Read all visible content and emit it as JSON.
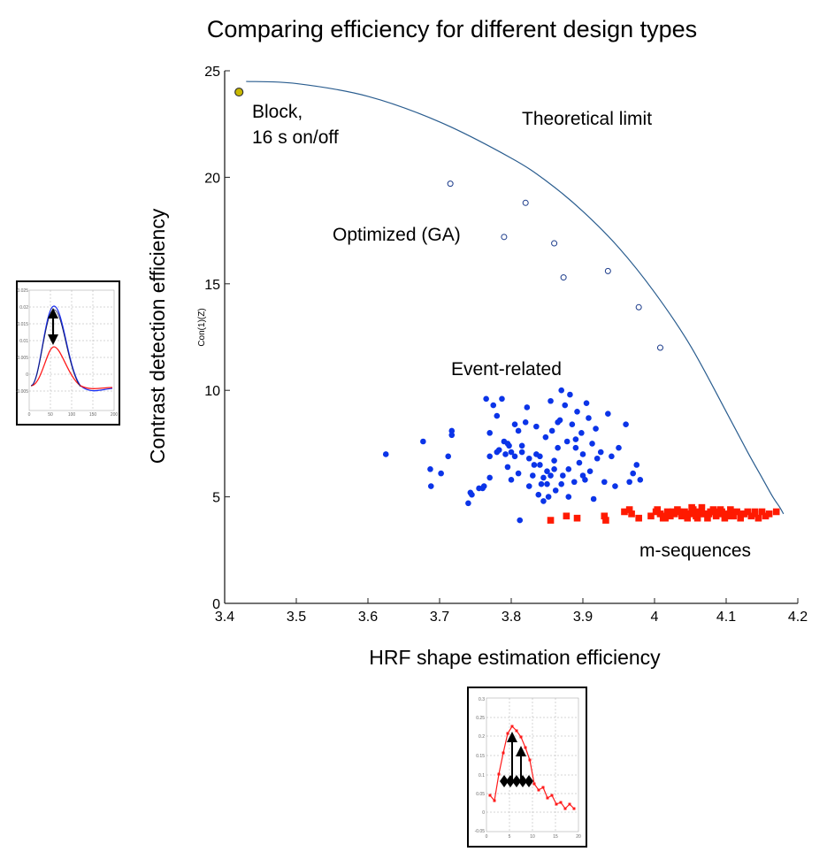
{
  "chart_data": {
    "type": "scatter",
    "title": "Comparing efficiency for different design types",
    "xlabel": "HRF shape estimation efficiency",
    "ylabel": "Contrast detection efficiency",
    "ylabel_small": "Con(1)(Z)",
    "xlim": [
      3.4,
      4.2
    ],
    "ylim": [
      0,
      25
    ],
    "x_ticks": [
      3.4,
      3.5,
      3.6,
      3.7,
      3.8,
      3.9,
      4,
      4.1,
      4.2
    ],
    "x_tick_labels": [
      "3.4",
      "3.5",
      "3.6",
      "3.7",
      "3.8",
      "3.9",
      "4",
      "4.1",
      "4.2"
    ],
    "y_ticks": [
      0,
      5,
      10,
      15,
      20,
      25
    ],
    "y_tick_labels": [
      "0",
      "5",
      "10",
      "15",
      "20",
      "25"
    ],
    "grid": false,
    "colors": {
      "limit": "#2a5d8f",
      "block_fill": "#c8b800",
      "ga": "#1a3a8a",
      "event": "#0b34e8",
      "mseq": "#ff1a00"
    },
    "annotations": {
      "block_line1": "Block,",
      "block_line2": "16 s on/off",
      "theoretical": "Theoretical limit",
      "optimized": "Optimized (GA)",
      "event_related": "Event-related",
      "m_sequences": "m-sequences"
    },
    "theoretical_limit": {
      "x": [
        3.43,
        3.5,
        3.6,
        3.7,
        3.8,
        3.85,
        3.9,
        3.95,
        4.0,
        4.05,
        4.1,
        4.13,
        4.15,
        4.165,
        4.175,
        4.18
      ],
      "y": [
        24.5,
        24.4,
        23.8,
        22.6,
        20.9,
        19.8,
        18.4,
        16.7,
        14.6,
        12.1,
        9.0,
        7.1,
        5.9,
        5.0,
        4.5,
        4.2
      ]
    },
    "series": [
      {
        "marker": "circle-filled",
        "x": [
          3.42
        ],
        "y": [
          24.0
        ]
      },
      {
        "marker": "circle-open",
        "x": [
          3.715,
          3.82,
          3.79,
          3.86,
          3.873,
          3.935,
          3.978,
          4.008
        ],
        "y": [
          19.7,
          18.8,
          17.2,
          16.9,
          15.3,
          15.6,
          13.9,
          12.0
        ]
      },
      {
        "marker": "dot",
        "x": [
          3.625,
          3.677,
          3.687,
          3.688,
          3.702,
          3.712,
          3.717,
          3.717,
          3.74,
          3.743,
          3.755,
          3.762,
          3.765,
          3.77,
          3.775,
          3.77,
          3.78,
          3.783,
          3.787,
          3.792,
          3.795,
          3.797,
          3.8,
          3.805,
          3.81,
          3.812,
          3.815,
          3.82,
          3.825,
          3.822,
          3.83,
          3.832,
          3.835,
          3.838,
          3.84,
          3.842,
          3.845,
          3.848,
          3.85,
          3.852,
          3.855,
          3.857,
          3.86,
          3.862,
          3.865,
          3.868,
          3.87,
          3.872,
          3.875,
          3.878,
          3.88,
          3.882,
          3.885,
          3.888,
          3.89,
          3.892,
          3.895,
          3.898,
          3.9,
          3.903,
          3.905,
          3.908,
          3.91,
          3.913,
          3.915,
          3.918,
          3.92,
          3.925,
          3.93,
          3.935,
          3.94,
          3.945,
          3.95,
          3.96,
          3.965,
          3.97,
          3.975,
          3.98,
          3.79,
          3.8,
          3.81,
          3.78,
          3.77,
          3.835,
          3.845,
          3.86,
          3.87,
          3.88,
          3.825,
          3.84,
          3.855,
          3.865,
          3.795,
          3.805,
          3.815,
          3.85,
          3.89,
          3.9,
          3.76,
          3.745
        ],
        "y": [
          7.0,
          7.6,
          6.3,
          5.5,
          6.1,
          6.9,
          8.1,
          7.9,
          4.7,
          5.2,
          5.4,
          5.5,
          9.6,
          8.0,
          9.3,
          6.9,
          8.8,
          7.2,
          9.6,
          7.0,
          6.4,
          7.4,
          5.8,
          8.4,
          6.1,
          3.9,
          7.1,
          8.5,
          5.5,
          9.2,
          6.0,
          6.5,
          8.3,
          5.1,
          6.9,
          5.6,
          4.8,
          7.8,
          6.2,
          5.0,
          9.5,
          8.1,
          6.7,
          5.3,
          7.3,
          8.6,
          10.0,
          6.0,
          9.3,
          7.6,
          6.3,
          9.8,
          8.4,
          5.7,
          7.7,
          9.0,
          6.6,
          8.0,
          7.0,
          5.8,
          9.4,
          8.7,
          6.2,
          7.5,
          4.9,
          8.2,
          6.8,
          7.1,
          5.7,
          8.9,
          6.9,
          5.5,
          7.3,
          8.4,
          5.7,
          6.1,
          6.5,
          5.8,
          7.6,
          7.1,
          8.1,
          7.1,
          5.9,
          7.0,
          5.9,
          6.3,
          5.6,
          5.0,
          6.8,
          6.5,
          6.0,
          8.5,
          7.5,
          6.9,
          7.4,
          5.6,
          7.3,
          6.0,
          5.4,
          5.1
        ]
      },
      {
        "marker": "square",
        "x": [
          3.855,
          3.877,
          3.892,
          3.93,
          3.932,
          3.958,
          3.965,
          3.968,
          3.978,
          3.995,
          4.002,
          4.008,
          4.012,
          4.018,
          4.022,
          4.028,
          4.032,
          4.038,
          4.042,
          4.046,
          4.05,
          4.054,
          4.058,
          4.062,
          4.066,
          4.07,
          4.074,
          4.078,
          4.082,
          4.086,
          4.09,
          4.094,
          4.098,
          4.102,
          4.106,
          4.11,
          4.115,
          4.12,
          4.125,
          4.13,
          4.135,
          4.14,
          4.145,
          4.15,
          4.155,
          4.16,
          4.17,
          4.004,
          4.016,
          4.026,
          4.044,
          4.06,
          4.076,
          4.092,
          4.108,
          4.124,
          4.14,
          4.015,
          4.034,
          4.052,
          4.068,
          4.084,
          4.1
        ],
        "y": [
          3.9,
          4.1,
          4.0,
          4.1,
          3.9,
          4.3,
          4.4,
          4.2,
          4.0,
          4.1,
          4.3,
          4.2,
          4.0,
          4.3,
          4.1,
          4.2,
          4.4,
          4.1,
          4.3,
          4.0,
          4.2,
          4.4,
          4.1,
          4.3,
          4.5,
          4.2,
          4.0,
          4.3,
          4.4,
          4.1,
          4.2,
          4.3,
          4.0,
          4.2,
          4.4,
          4.1,
          4.3,
          4.0,
          4.2,
          4.3,
          4.1,
          4.2,
          4.0,
          4.3,
          4.1,
          4.2,
          4.3,
          4.4,
          4.1,
          4.3,
          4.2,
          4.0,
          4.2,
          4.4,
          4.1,
          4.2,
          4.3,
          4.0,
          4.3,
          4.5,
          4.2,
          4.3,
          4.1
        ]
      }
    ]
  },
  "insets": {
    "left": {
      "y_ticks": [
        "0.025",
        "0.02",
        "0.015",
        "0.01",
        "0.005",
        "0",
        "-0.005"
      ],
      "x_ticks": [
        "0",
        "50",
        "100",
        "150",
        "200"
      ],
      "colors": {
        "line_a": "#1a2ef0",
        "line_b": "#ff1a1a"
      }
    },
    "bottom": {
      "y_ticks": [
        "0.3",
        "0.25",
        "0.2",
        "0.15",
        "0.1",
        "0.05",
        "0",
        "-0.05"
      ],
      "x_ticks": [
        "0",
        "5",
        "10",
        "15",
        "20"
      ],
      "colors": {
        "line": "#ff1a1a"
      }
    }
  }
}
